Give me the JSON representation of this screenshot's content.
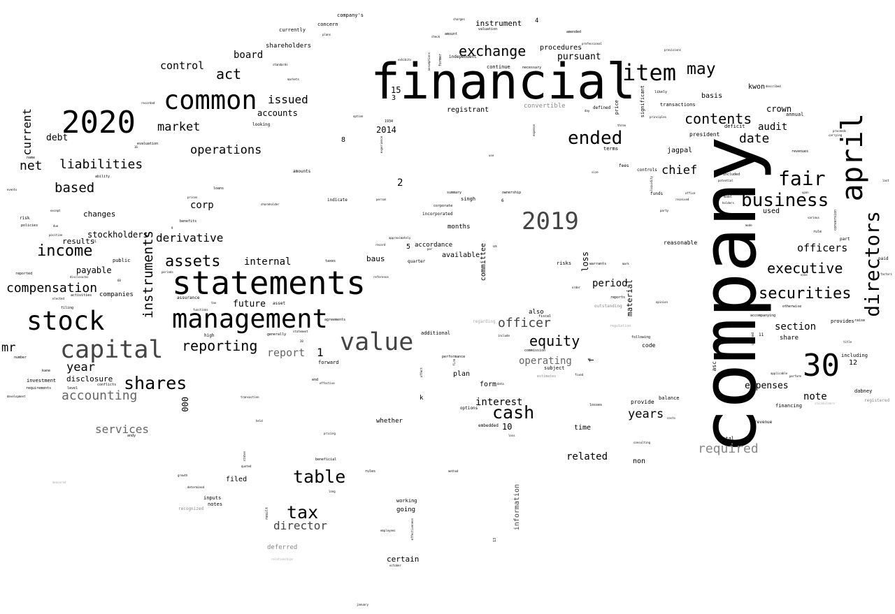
{
  "words": {
    "company": "company",
    "financial": "financial",
    "statements": "statements",
    "management": "management",
    "common": "common",
    "stock": "stock",
    "capital": "capital",
    "year_2020": "2020",
    "value": "value",
    "year_2019": "2019",
    "april": "april",
    "num_30": "30",
    "item": "item",
    "directors": "directors",
    "shares": "shares",
    "cash": "cash",
    "fair": "fair",
    "business": "business",
    "tax": "tax",
    "table": "table",
    "ended": "ended",
    "may": "may",
    "exchange": "exchange",
    "contents": "contents",
    "securities": "securities",
    "executive": "executive",
    "equity": "equity",
    "officer": "officer",
    "reporting": "reporting",
    "income": "income",
    "assets": "assets",
    "instruments": "instruments",
    "liabilities": "liabilities",
    "compensation": "compensation",
    "accounting": "accounting",
    "services": "services",
    "operations": "operations",
    "market": "market",
    "based": "based",
    "net": "net",
    "current": "current",
    "derivative": "derivative",
    "act": "act",
    "control": "control",
    "board": "board",
    "issued": "issued",
    "director": "director",
    "years": "years",
    "interest": "interest",
    "date": "date",
    "chief": "chief",
    "officers": "officers",
    "year": "year",
    "mr": "mr",
    "report": "report",
    "required": "required",
    "period": "period",
    "operating": "operating",
    "section": "section",
    "note": "note",
    "expenses": "expenses",
    "related": "related",
    "audit": "audit",
    "crown": "crown",
    "internal": "internal",
    "corp": "corp",
    "future": "future",
    "disclosure": "disclosure",
    "stockholders": "stockholders",
    "payable": "payable",
    "changes": "changes",
    "results": "results",
    "debt": "debt",
    "accounts": "accounts",
    "shareholders": "shareholders",
    "pursuant": "pursuant",
    "procedures": "procedures",
    "instrument": "instrument",
    "registrant": "registrant",
    "convertible": "convertible",
    "president": "president",
    "jagpal": "jagpal",
    "used": "used",
    "kwon": "kwon",
    "basis": "basis",
    "loss": "loss",
    "material": "material",
    "committee": "committee",
    "months": "months",
    "available": "available",
    "accordance": "accordance",
    "baus": "baus",
    "plan": "plan",
    "form": "form",
    "also": "also",
    "time": "time",
    "non": "non",
    "filed": "filed",
    "certain": "certain",
    "information": "information",
    "deferred": "deferred",
    "whether": "whether",
    "going": "going",
    "working": "working",
    "notes": "notes",
    "inputs": "inputs",
    "provide": "provide",
    "share": "share",
    "code": "code",
    "balance": "balance",
    "total": "total",
    "financing": "financing",
    "revenue": "revenue",
    "registered": "registered",
    "dabney": "dabney",
    "including": "including",
    "provides": "provides",
    "reasonable": "reasonable",
    "transactions": "transactions",
    "annual": "annual",
    "deficit": "deficit",
    "significant": "significant",
    "price": "price",
    "defined": "defined",
    "terms": "terms",
    "fees": "fees",
    "controls": "controls",
    "funds": "funds",
    "risks": "risks",
    "warrants": "warrants",
    "forward": "forward",
    "continue": "continue",
    "independent": "independent",
    "currently": "currently",
    "concern": "concern",
    "companys": "company's",
    "looking": "looking",
    "evaluation": "evaluation",
    "ability": "ability",
    "amounts": "amounts",
    "loans": "loans",
    "indicate": "indicate",
    "benefits": "benefits",
    "public": "public",
    "companies": "companies",
    "assurance": "assurance",
    "investment": "investment",
    "requirements": "requirements",
    "level": "level",
    "conflicts": "conflicts",
    "number": "number",
    "filing": "filing",
    "activities": "activities",
    "agreements": "agreements",
    "generally": "generally",
    "high": "high",
    "asset": "asset",
    "accompanying": "accompanying",
    "otherwise": "otherwise",
    "singh": "singh",
    "corporate": "corporate",
    "incorporated": "incorporated",
    "summary": "summary",
    "ownership": "ownership",
    "quarter": "quarter",
    "options": "options",
    "losses": "losses",
    "embedded": "embedded",
    "additional": "additional",
    "performance": "performance",
    "commission": "commission",
    "subject": "subject",
    "regarding": "regarding",
    "fiscal": "fiscal",
    "outstanding": "outstanding",
    "reports": "reports",
    "following": "following",
    "regulation": "regulation",
    "estimates": "estimates",
    "andy": "andy",
    "beneficial": "beneficial",
    "pricing": "pricing",
    "rules": "rules",
    "result": "result",
    "recognized": "recognized",
    "growth": "growth",
    "determined": "determined",
    "employees": "employees",
    "effectiveness": "effectiveness",
    "october": "october",
    "january": "january",
    "measured": "measured",
    "relationships": "relationships",
    "events": "events",
    "risk": "risk",
    "policies": "policies",
    "reported": "reported",
    "name": "name",
    "development": "development",
    "kane": "kane",
    "except": "except",
    "position": "position",
    "due": "due",
    "elected": "elected",
    "disclosures": "disclosures",
    "valuation": "valuation",
    "amount": "amount",
    "check": "check",
    "plans": "plans",
    "charges": "charges",
    "professional": "professional",
    "amended": "amended",
    "provisions": "provisions",
    "described": "described",
    "necessary": "necessary",
    "former": "former",
    "assumptions": "assumptions",
    "exhibits": "exhibits",
    "standards": "standards",
    "markets": "markets",
    "recorded": "recorded",
    "likely": "likely",
    "principles": "principles",
    "three": "three",
    "day": "day",
    "option": "option",
    "expense": "expense",
    "experience": "experience",
    "person": "person",
    "record": "record",
    "reference": "reference",
    "approximately": "approximately",
    "per": "per",
    "us": "us",
    "taxes": "taxes",
    "prices": "prices",
    "shareholder": "shareholder",
    "periods": "periods",
    "functions": "functions",
    "tax_small": "tax",
    "statement": "statement",
    "include": "include",
    "effective": "effective",
    "end": "end",
    "transaction": "transaction",
    "held": "held",
    "quoted": "quoted",
    "states": "states",
    "long": "long",
    "method": "method",
    "loss_small": "loss",
    "affect": "affect",
    "fixed": "fixed",
    "data": "data",
    "firm": "firm",
    "f_letter": "f",
    "k_letter": "k",
    "asc": "asc",
    "united": "united",
    "stockholders_small": "stockholders'",
    "conversion": "conversion",
    "mode": "mode",
    "rule": "rule",
    "none": "none",
    "upon": "upon",
    "various": "various",
    "proceeds": "proceeds",
    "carrying": "carrying",
    "revenues": "revenues",
    "last": "last",
    "factors": "factors",
    "paid": "paid",
    "part": "part",
    "raise": "raise",
    "title": "title",
    "perform": "perform",
    "applicable": "applicable",
    "costs": "costs",
    "consulting": "consulting",
    "opinion": "opinion",
    "party": "party",
    "received": "received",
    "model": "model",
    "holders": "holders",
    "office": "office",
    "potential": "potential",
    "included": "included",
    "liquidity": "liquidity",
    "use": "use",
    "size": "size",
    "order": "order",
    "mark": "mark",
    "1934": "1934",
    "num_15": "15",
    "num_3": "3",
    "num_2014": "2014",
    "num_8": "8",
    "num_16": "16",
    "num_2": "2",
    "num_5": "5",
    "num_1": "1",
    "num_10": "10",
    "num_000": "000",
    "num_12": "12",
    "num_4": "4",
    "num_6": "6",
    "num_11": "11",
    "num_13": "13",
    "num_60": "60",
    "num_9": "9",
    "num_21": "21",
    "num_20": "20"
  }
}
